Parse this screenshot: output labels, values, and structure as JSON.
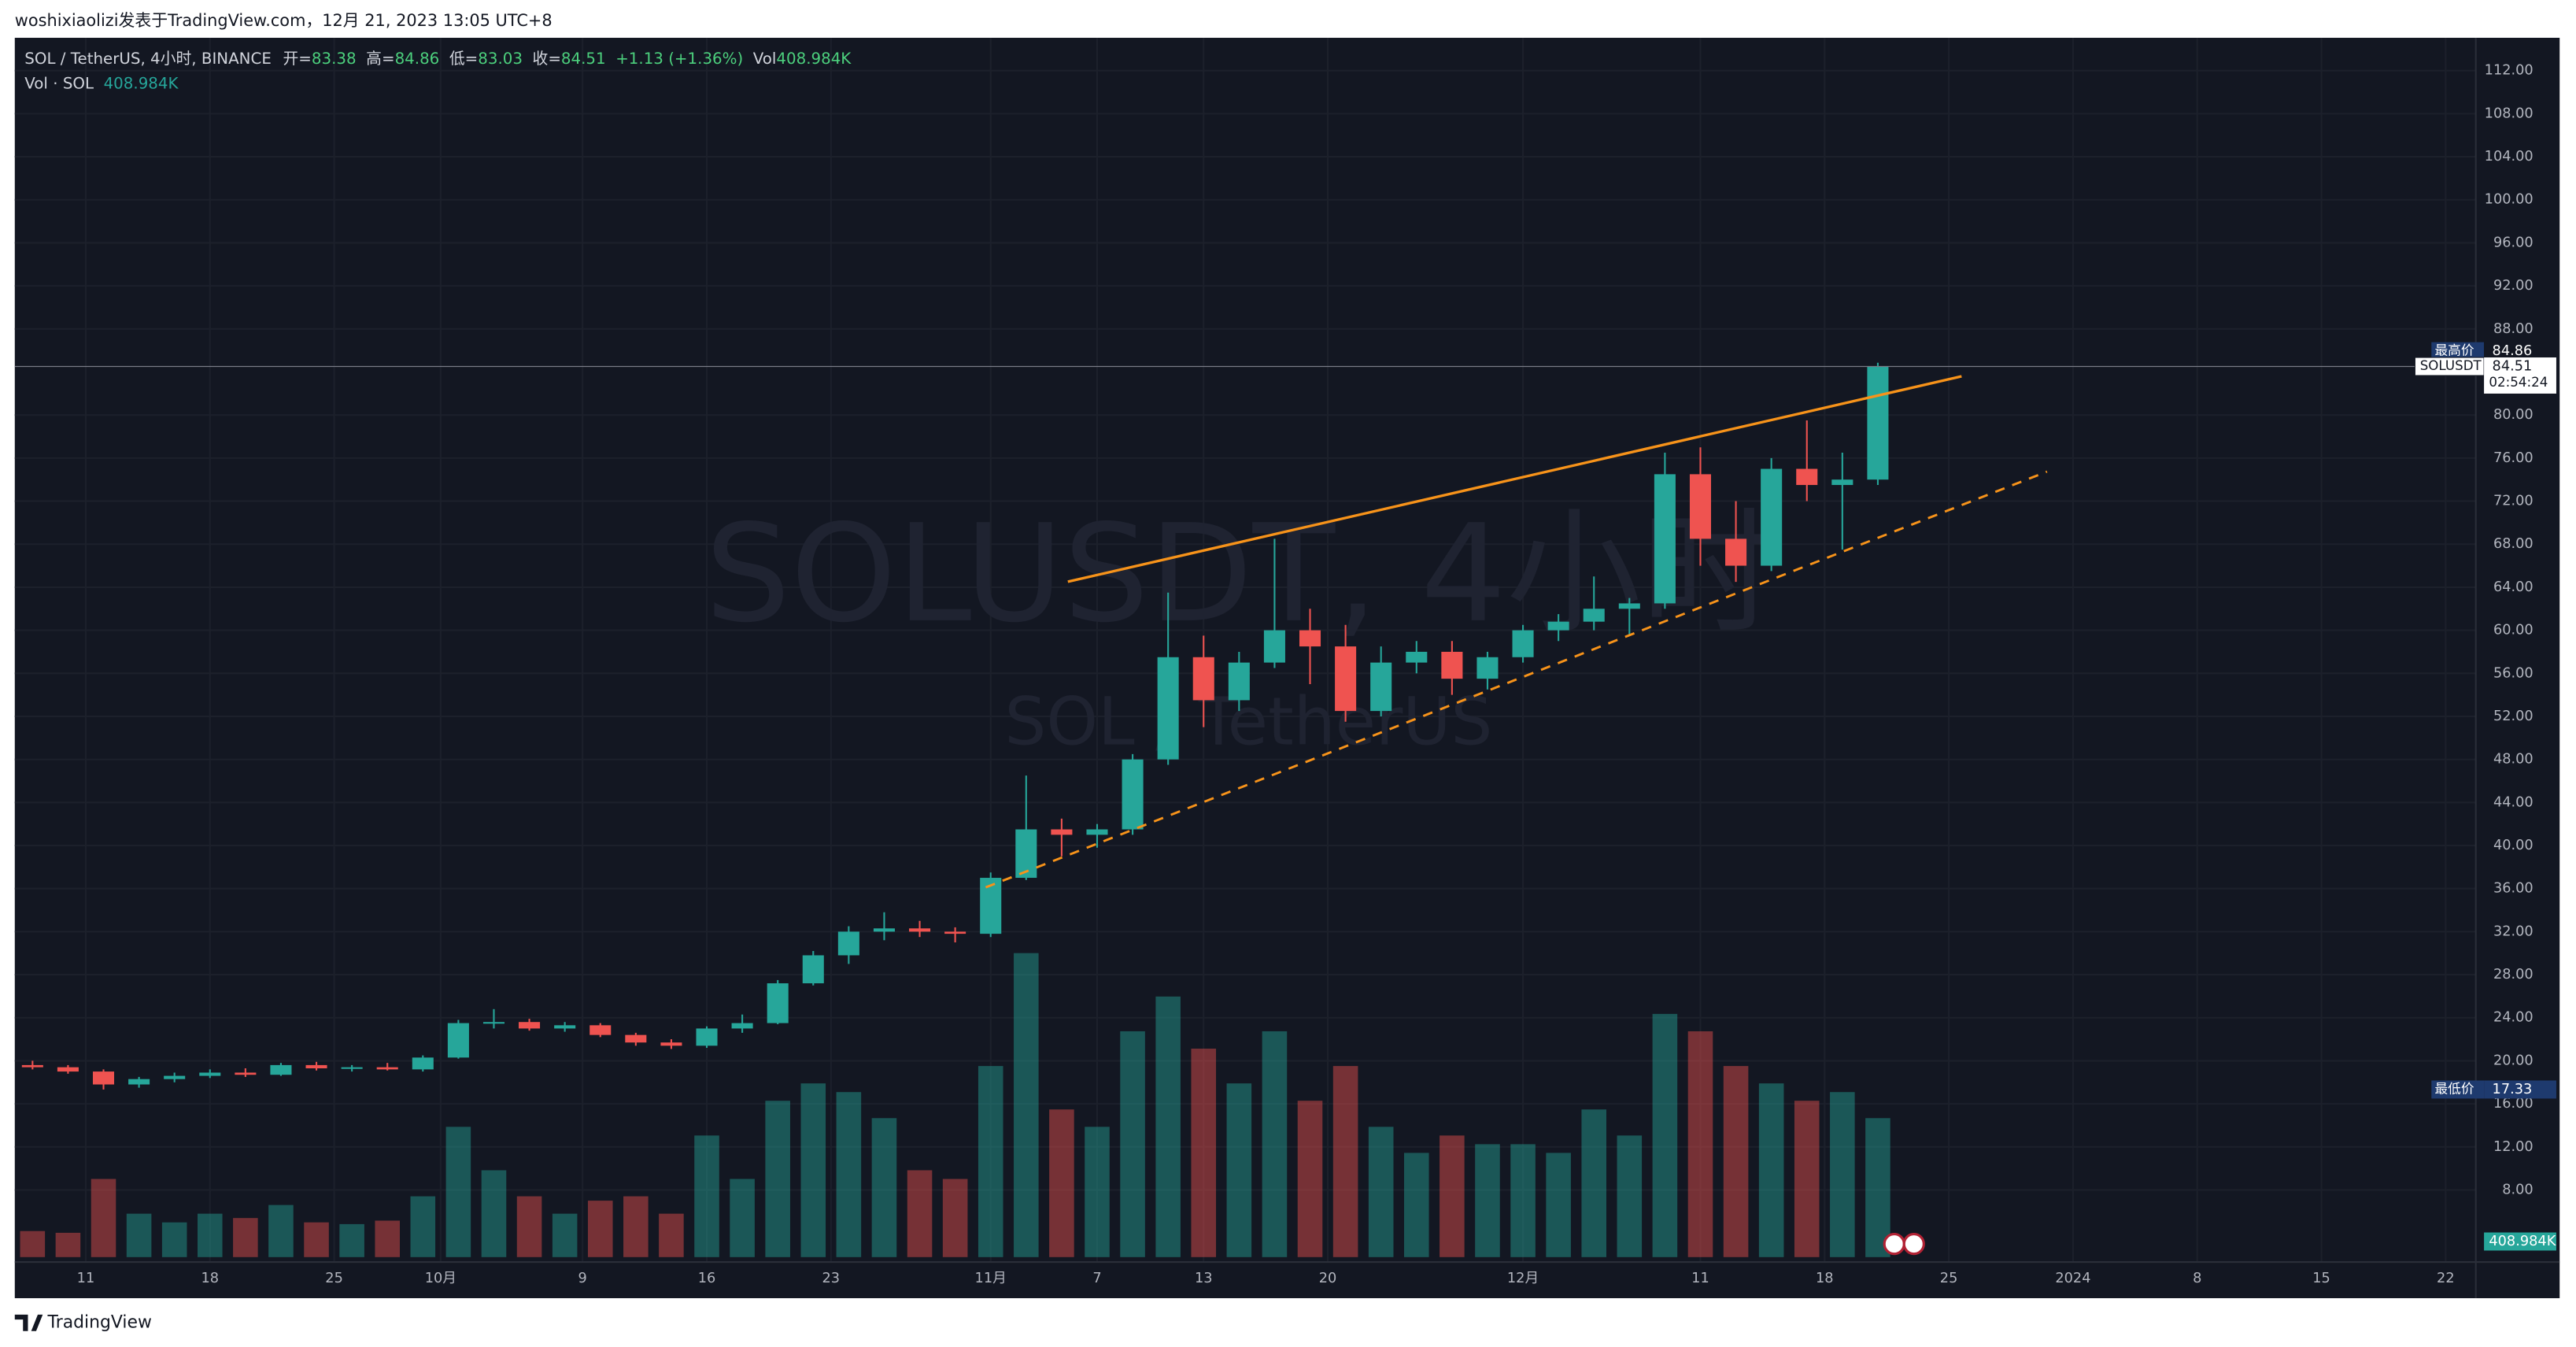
{
  "header": {
    "text": "woshixiaolizi发表于TradingView.com，12月 21, 2023 13:05 UTC+8"
  },
  "footer": {
    "brand": "TradingView"
  },
  "chart_data": {
    "type": "candlestick",
    "watermark": {
      "symbol": "SOLUSDT, 4小时",
      "name": "SOL / TetherUS"
    },
    "legend": {
      "title": "SOL / TetherUS, 4小时, BINANCE",
      "fields": [
        {
          "label": "开=",
          "value": "83.38"
        },
        {
          "label": "高=",
          "value": "84.86"
        },
        {
          "label": "低=",
          "value": "83.03"
        },
        {
          "label": "收=",
          "value": "84.51"
        },
        {
          "label": "",
          "value": "+1.13 (+1.36%)"
        },
        {
          "label": "Vol",
          "value": "408.984K"
        }
      ],
      "volume_title": "Vol · SOL",
      "volume_value": "408.984K"
    },
    "price_labels": {
      "high": {
        "label": "最高价",
        "value": 84.86
      },
      "low": {
        "label": "最低价",
        "value": 17.33
      },
      "last": {
        "label": "SOLUSDT",
        "value": 84.51,
        "countdown": "02:54:24"
      },
      "volume": "408.984K"
    },
    "colors": {
      "up": "#26a69a",
      "down": "#ef5350"
    },
    "grid": true,
    "xlim": [
      -4,
      134.7
    ],
    "xticks": [
      {
        "value": 0,
        "label": "11"
      },
      {
        "value": 7,
        "label": "18"
      },
      {
        "value": 14,
        "label": "25"
      },
      {
        "value": 20,
        "label": "10月"
      },
      {
        "value": 28,
        "label": "9"
      },
      {
        "value": 35,
        "label": "16"
      },
      {
        "value": 42,
        "label": "23"
      },
      {
        "value": 51,
        "label": "11月"
      },
      {
        "value": 57,
        "label": "7"
      },
      {
        "value": 63,
        "label": "13"
      },
      {
        "value": 70,
        "label": "20"
      },
      {
        "value": 81,
        "label": "12月"
      },
      {
        "value": 91,
        "label": "11"
      },
      {
        "value": 98,
        "label": "18"
      },
      {
        "value": 105,
        "label": "25"
      },
      {
        "value": 112,
        "label": "2024"
      },
      {
        "value": 119,
        "label": "8"
      },
      {
        "value": 126,
        "label": "15"
      },
      {
        "value": 133,
        "label": "22"
      }
    ],
    "ylim": [
      1.3,
      115.05
    ],
    "yticks": [
      {
        "value": 112,
        "label": "112.00"
      },
      {
        "value": 108,
        "label": "108.00"
      },
      {
        "value": 104,
        "label": "104.00"
      },
      {
        "value": 100,
        "label": "100.00"
      },
      {
        "value": 96,
        "label": "96.00"
      },
      {
        "value": 92,
        "label": "92.00"
      },
      {
        "value": 88,
        "label": "88.00"
      },
      {
        "value": 80,
        "label": "80.00"
      },
      {
        "value": 76,
        "label": "76.00"
      },
      {
        "value": 72,
        "label": "72.00"
      },
      {
        "value": 68,
        "label": "68.00"
      },
      {
        "value": 64,
        "label": "64.00"
      },
      {
        "value": 60,
        "label": "60.00"
      },
      {
        "value": 56,
        "label": "56.00"
      },
      {
        "value": 52,
        "label": "52.00"
      },
      {
        "value": 48,
        "label": "48.00"
      },
      {
        "value": 44,
        "label": "44.00"
      },
      {
        "value": 40,
        "label": "40.00"
      },
      {
        "value": 36,
        "label": "36.00"
      },
      {
        "value": 32,
        "label": "32.00"
      },
      {
        "value": 28,
        "label": "28.00"
      },
      {
        "value": 24,
        "label": "24.00"
      },
      {
        "value": 20,
        "label": "20.00"
      },
      {
        "value": 16,
        "label": "16.00"
      },
      {
        "value": 12,
        "label": "12.00"
      },
      {
        "value": 8,
        "label": "8.00"
      }
    ],
    "candles": [
      [
        -3,
        19.6,
        20.0,
        19.2,
        19.4,
        300
      ],
      [
        -1,
        19.4,
        19.6,
        18.8,
        19.0,
        280
      ],
      [
        1,
        19.0,
        19.2,
        17.33,
        17.8,
        900
      ],
      [
        3,
        17.8,
        18.5,
        17.5,
        18.3,
        500
      ],
      [
        5,
        18.3,
        18.9,
        18.0,
        18.6,
        400
      ],
      [
        7,
        18.6,
        19.2,
        18.4,
        18.9,
        500
      ],
      [
        9,
        18.9,
        19.3,
        18.5,
        18.7,
        450
      ],
      [
        11,
        18.7,
        19.8,
        18.6,
        19.6,
        600
      ],
      [
        13,
        19.6,
        19.9,
        19.1,
        19.3,
        400
      ],
      [
        15,
        19.3,
        19.6,
        19.0,
        19.4,
        380
      ],
      [
        17,
        19.4,
        19.8,
        19.1,
        19.2,
        420
      ],
      [
        19,
        19.2,
        20.5,
        19.0,
        20.3,
        700
      ],
      [
        21,
        20.3,
        23.8,
        20.2,
        23.5,
        1500
      ],
      [
        23,
        23.5,
        24.8,
        23.0,
        23.6,
        1000
      ],
      [
        25,
        23.6,
        23.9,
        22.8,
        23.0,
        700
      ],
      [
        27,
        23.0,
        23.6,
        22.7,
        23.3,
        500
      ],
      [
        29,
        23.3,
        23.5,
        22.2,
        22.4,
        650
      ],
      [
        31,
        22.4,
        22.6,
        21.4,
        21.7,
        700
      ],
      [
        33,
        21.7,
        22.0,
        21.1,
        21.4,
        500
      ],
      [
        35,
        21.4,
        23.2,
        21.2,
        23.0,
        1400
      ],
      [
        37,
        23.0,
        24.3,
        22.6,
        23.5,
        900
      ],
      [
        39,
        23.5,
        27.5,
        23.4,
        27.2,
        1800
      ],
      [
        41,
        27.2,
        30.2,
        27.0,
        29.8,
        2000
      ],
      [
        43,
        29.8,
        32.5,
        29.0,
        32.0,
        1900
      ],
      [
        45,
        32.0,
        33.8,
        31.2,
        32.3,
        1600
      ],
      [
        47,
        32.3,
        33.0,
        31.5,
        32.0,
        1000
      ],
      [
        49,
        32.0,
        32.4,
        31.0,
        31.8,
        900
      ],
      [
        51,
        31.8,
        37.5,
        31.5,
        37.0,
        2200
      ],
      [
        53,
        37.0,
        46.5,
        36.8,
        41.5,
        3500
      ],
      [
        55,
        41.5,
        42.5,
        39.0,
        41.0,
        1700
      ],
      [
        57,
        41.0,
        42.0,
        39.8,
        41.5,
        1500
      ],
      [
        59,
        41.5,
        48.5,
        41.0,
        48.0,
        2600
      ],
      [
        61,
        48.0,
        63.5,
        47.5,
        57.5,
        3000
      ],
      [
        63,
        57.5,
        59.5,
        51.0,
        53.5,
        2400
      ],
      [
        65,
        53.5,
        58.0,
        52.5,
        57.0,
        2000
      ],
      [
        67,
        57.0,
        68.5,
        56.5,
        60.0,
        2600
      ],
      [
        69,
        60.0,
        62.0,
        55.0,
        58.5,
        1800
      ],
      [
        71,
        58.5,
        60.5,
        51.5,
        52.5,
        2200
      ],
      [
        73,
        52.5,
        58.5,
        52.0,
        57.0,
        1500
      ],
      [
        75,
        57.0,
        59.0,
        56.0,
        58.0,
        1200
      ],
      [
        77,
        58.0,
        59.0,
        54.0,
        55.5,
        1400
      ],
      [
        79,
        55.5,
        58.0,
        54.5,
        57.5,
        1300
      ],
      [
        81,
        57.5,
        60.5,
        57.0,
        60.0,
        1300
      ],
      [
        83,
        60.0,
        61.5,
        59.0,
        60.8,
        1200
      ],
      [
        85,
        60.8,
        65.0,
        60.0,
        62.0,
        1700
      ],
      [
        87,
        62.0,
        63.0,
        59.5,
        62.5,
        1400
      ],
      [
        89,
        62.5,
        76.5,
        62.0,
        74.5,
        2800
      ],
      [
        91,
        74.5,
        77.0,
        66.0,
        68.5,
        2600
      ],
      [
        93,
        68.5,
        72.0,
        64.5,
        66.0,
        2200
      ],
      [
        95,
        66.0,
        76.0,
        65.5,
        75.0,
        2000
      ],
      [
        97,
        75.0,
        79.5,
        72.0,
        73.5,
        1800
      ],
      [
        99,
        73.5,
        76.5,
        67.5,
        74.0,
        1900
      ],
      [
        101,
        74.0,
        84.86,
        73.5,
        84.51,
        1600
      ]
    ]
  }
}
